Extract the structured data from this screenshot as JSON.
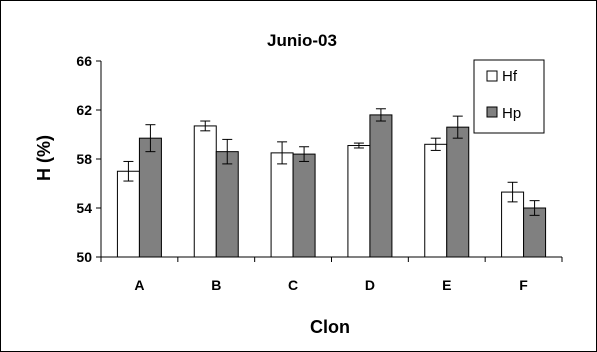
{
  "chart_data": {
    "type": "bar",
    "title": "Junio-03",
    "xlabel": "Clon",
    "ylabel": "H (%)",
    "categories": [
      "A",
      "B",
      "C",
      "D",
      "E",
      "F"
    ],
    "ylim": [
      50,
      66
    ],
    "yticks": [
      50,
      54,
      58,
      62,
      66
    ],
    "grid": false,
    "legend_position": "top-right",
    "series": [
      {
        "name": "Hf",
        "color": "#ffffff",
        "values": [
          57.0,
          60.7,
          58.5,
          59.1,
          59.2,
          55.3
        ],
        "errors": [
          0.8,
          0.4,
          0.9,
          0.2,
          0.5,
          0.8
        ]
      },
      {
        "name": "Hp",
        "color": "#808080",
        "values": [
          59.7,
          58.6,
          58.4,
          61.6,
          60.6,
          54.0
        ],
        "errors": [
          1.1,
          1.0,
          0.6,
          0.5,
          0.9,
          0.6
        ]
      }
    ]
  }
}
